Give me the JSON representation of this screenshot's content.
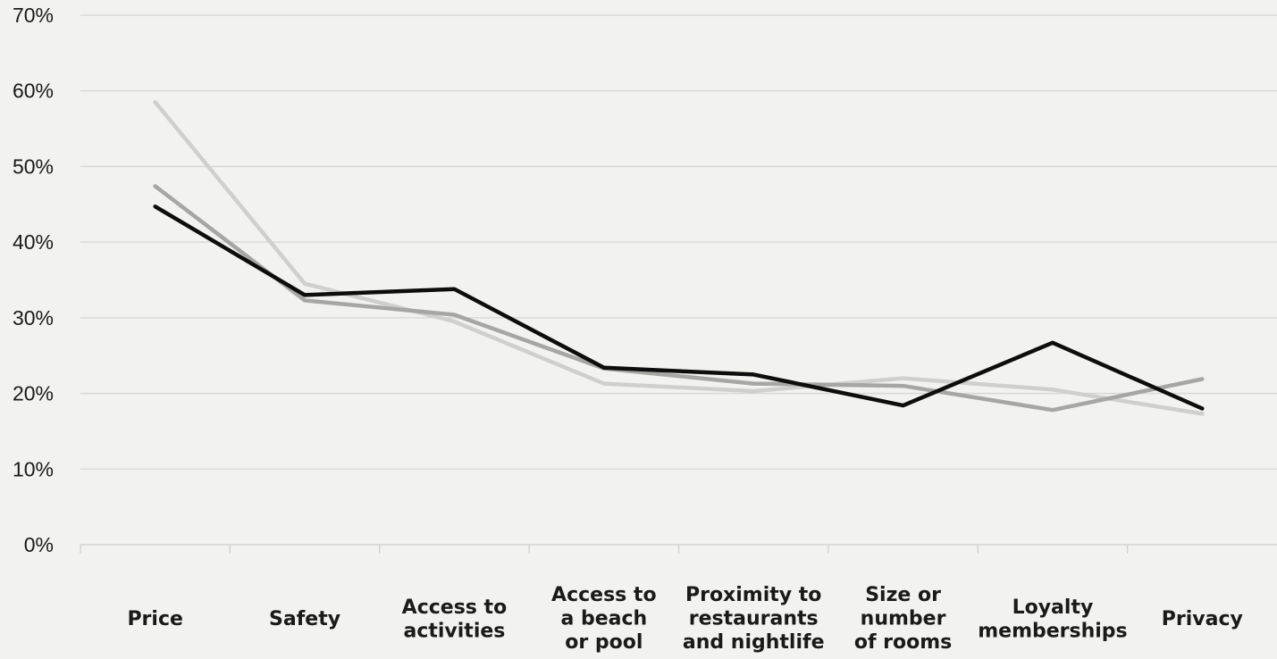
{
  "chart_data": {
    "type": "line",
    "title": "",
    "xlabel": "",
    "ylabel": "",
    "ylim": [
      0,
      70
    ],
    "y_ticks": [
      "0%",
      "10%",
      "20%",
      "30%",
      "40%",
      "50%",
      "60%",
      "70%"
    ],
    "y_tick_values": [
      0,
      10,
      20,
      30,
      40,
      50,
      60,
      70
    ],
    "grid": "horizontal",
    "legend": "none",
    "categories": [
      [
        "Price"
      ],
      [
        "Safety"
      ],
      [
        "Access to",
        "activities"
      ],
      [
        "Access to",
        "a beach",
        "or pool"
      ],
      [
        "Proximity to",
        "restaurants",
        "and nightlife"
      ],
      [
        "Size or",
        "number",
        "of rooms"
      ],
      [
        "Loyalty",
        "memberships"
      ],
      [
        "Privacy"
      ]
    ],
    "series": [
      {
        "color": "#cfcfcd",
        "values": [
          58.5,
          34.5,
          29.5,
          21.3,
          20.3,
          22.0,
          20.5,
          17.3
        ]
      },
      {
        "color": "#a6a6a4",
        "values": [
          47.4,
          32.3,
          30.4,
          23.3,
          21.3,
          21.0,
          17.8,
          21.9
        ]
      },
      {
        "color": "#0d0d0d",
        "values": [
          44.7,
          33.0,
          33.8,
          23.4,
          22.5,
          18.4,
          26.7,
          18.0
        ]
      }
    ]
  }
}
